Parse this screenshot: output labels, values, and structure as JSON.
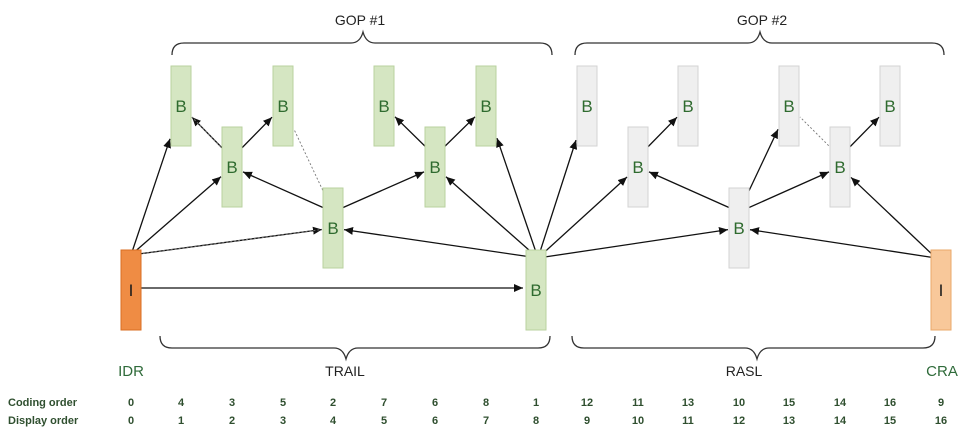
{
  "colors": {
    "frame_b_fill": "#d5e6c2",
    "frame_b_stroke": "#b9d19f",
    "frame_b_text": "#2f6b2f",
    "frame_grey_fill": "#efefef",
    "frame_grey_stroke": "#d3d3d3",
    "frame_idr_fill": "#ef8c44",
    "frame_idr_stroke": "#d96e22",
    "frame_cra_fill": "#f8c89a",
    "frame_cra_stroke": "#eaa86a",
    "type_label": "#2f6b3a",
    "arrow": "#111111",
    "brace": "#333333"
  },
  "gop_labels": {
    "gop1": "GOP #1",
    "gop2": "GOP #2"
  },
  "category_labels": {
    "trail": "TRAIL",
    "rasl": "RASL"
  },
  "type_labels": {
    "idr": "IDR",
    "cra": "CRA"
  },
  "frames": [
    {
      "id": "f0",
      "label": "I",
      "kind": "idr"
    },
    {
      "id": "f1",
      "label": "B",
      "kind": "b"
    },
    {
      "id": "f2",
      "label": "B",
      "kind": "b"
    },
    {
      "id": "f3",
      "label": "B",
      "kind": "b"
    },
    {
      "id": "f4",
      "label": "B",
      "kind": "b"
    },
    {
      "id": "f5",
      "label": "B",
      "kind": "b"
    },
    {
      "id": "f6",
      "label": "B",
      "kind": "b"
    },
    {
      "id": "f7",
      "label": "B",
      "kind": "b"
    },
    {
      "id": "f8",
      "label": "B",
      "kind": "b"
    },
    {
      "id": "f9",
      "label": "B",
      "kind": "grey"
    },
    {
      "id": "f10",
      "label": "B",
      "kind": "grey"
    },
    {
      "id": "f11",
      "label": "B",
      "kind": "grey"
    },
    {
      "id": "f12",
      "label": "B",
      "kind": "grey"
    },
    {
      "id": "f13",
      "label": "B",
      "kind": "grey"
    },
    {
      "id": "f14",
      "label": "B",
      "kind": "grey"
    },
    {
      "id": "f15",
      "label": "B",
      "kind": "grey"
    },
    {
      "id": "f16",
      "label": "I",
      "kind": "cra"
    }
  ],
  "references": [
    [
      "f0",
      "f1",
      false
    ],
    [
      "f0",
      "f2",
      false
    ],
    [
      "f0",
      "f4",
      false
    ],
    [
      "f0",
      "f8",
      false
    ],
    [
      "f2",
      "f1",
      false
    ],
    [
      "f2",
      "f3",
      false
    ],
    [
      "f4",
      "f2",
      false
    ],
    [
      "f4",
      "f6",
      false
    ],
    [
      "f6",
      "f5",
      false
    ],
    [
      "f6",
      "f7",
      false
    ],
    [
      "f8",
      "f4",
      false
    ],
    [
      "f8",
      "f6",
      false
    ],
    [
      "f8",
      "f7",
      false
    ],
    [
      "f8",
      "f9",
      false
    ],
    [
      "f8",
      "f10",
      false
    ],
    [
      "f8",
      "f12",
      false
    ],
    [
      "f10",
      "f11",
      false
    ],
    [
      "f12",
      "f10",
      false
    ],
    [
      "f12",
      "f14",
      false
    ],
    [
      "f12",
      "f13",
      false
    ],
    [
      "f14",
      "f15",
      false
    ],
    [
      "f16",
      "f14",
      false
    ],
    [
      "f16",
      "f12",
      false
    ],
    [
      "f0",
      "f4",
      true
    ],
    [
      "f2",
      "f1",
      true
    ],
    [
      "f4",
      "f3",
      true
    ],
    [
      "f14",
      "f13",
      true
    ]
  ],
  "table": {
    "coding_label": "Coding order",
    "display_label": "Display order",
    "coding": [
      "0",
      "4",
      "3",
      "5",
      "2",
      "7",
      "6",
      "8",
      "1",
      "12",
      "11",
      "13",
      "10",
      "15",
      "14",
      "16",
      "9"
    ],
    "display": [
      "0",
      "1",
      "2",
      "3",
      "4",
      "5",
      "6",
      "7",
      "8",
      "9",
      "10",
      "11",
      "12",
      "13",
      "14",
      "15",
      "16"
    ]
  }
}
